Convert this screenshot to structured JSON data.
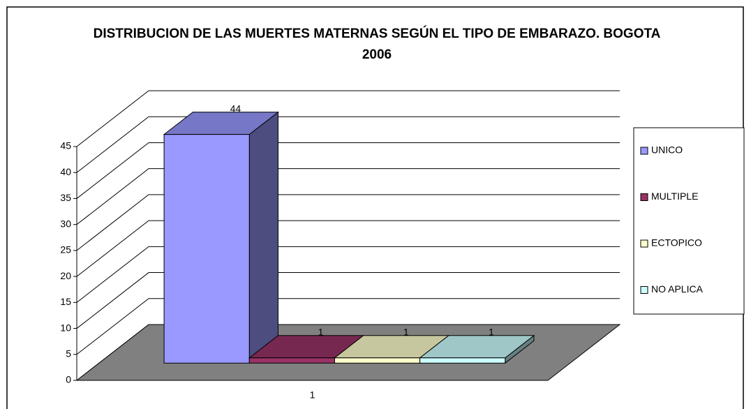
{
  "chart_data": {
    "type": "bar3d",
    "title": "DISTRIBUCION DE LAS MUERTES MATERNAS SEGÚN EL TIPO DE EMBARAZO. BOGOTA 2006",
    "categories": [
      "1"
    ],
    "series": [
      {
        "name": "UNICO",
        "color": "#9999ff",
        "values": [
          44
        ]
      },
      {
        "name": "MULTIPLE",
        "color": "#993366",
        "values": [
          1
        ]
      },
      {
        "name": "ECTOPICO",
        "color": "#ffffcc",
        "values": [
          1
        ]
      },
      {
        "name": "NO APLICA",
        "color": "#ccffff",
        "values": [
          1
        ]
      }
    ],
    "ylim": [
      0,
      45
    ],
    "yticks": [
      0,
      5,
      10,
      15,
      20,
      25,
      30,
      35,
      40,
      45
    ],
    "grid": true,
    "legend": "right"
  }
}
